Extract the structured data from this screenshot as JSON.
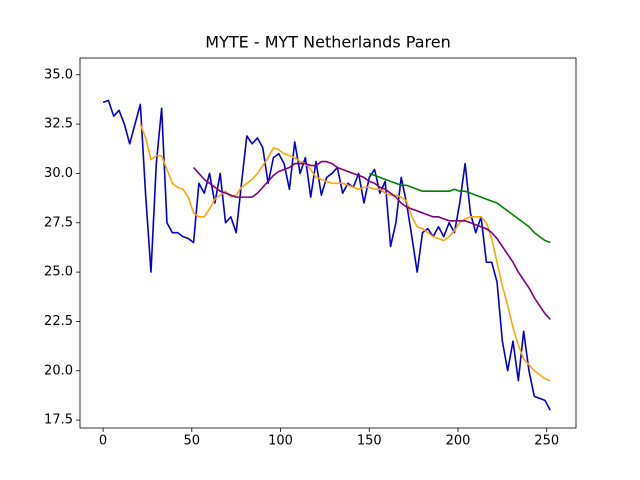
{
  "chart_data": {
    "type": "line",
    "title": "MYTE - MYT Netherlands Paren",
    "x": [
      0,
      3,
      6,
      9,
      12,
      15,
      18,
      21,
      24,
      27,
      30,
      33,
      36,
      39,
      42,
      45,
      48,
      51,
      54,
      57,
      60,
      63,
      66,
      69,
      72,
      75,
      78,
      81,
      84,
      87,
      90,
      93,
      96,
      99,
      102,
      105,
      108,
      111,
      114,
      117,
      120,
      123,
      126,
      129,
      132,
      135,
      138,
      141,
      144,
      147,
      150,
      153,
      156,
      159,
      162,
      165,
      168,
      171,
      174,
      177,
      180,
      183,
      186,
      189,
      192,
      195,
      198,
      201,
      204,
      207,
      210,
      213,
      216,
      219,
      222,
      225,
      228,
      231,
      234,
      237,
      240,
      243,
      246,
      249,
      252
    ],
    "series": [
      {
        "color": "#0000cc",
        "values": [
          33.6,
          33.7,
          32.9,
          33.2,
          32.5,
          31.5,
          32.5,
          33.5,
          28.9,
          25.0,
          30.5,
          33.3,
          27.5,
          27.0,
          27.0,
          26.8,
          26.7,
          26.5,
          29.5,
          29.0,
          30.0,
          28.5,
          30.0,
          27.5,
          27.8,
          27.0,
          29.5,
          31.9,
          31.5,
          31.8,
          31.3,
          29.5,
          30.8,
          31.0,
          30.5,
          29.2,
          31.6,
          30.0,
          30.8,
          28.8,
          30.6,
          28.9,
          29.8,
          30.0,
          30.3,
          29.0,
          29.5,
          29.3,
          30.0,
          28.5,
          29.8,
          30.2,
          29.0,
          29.6,
          26.3,
          27.5,
          29.8,
          28.5,
          26.8,
          25.0,
          27.0,
          27.2,
          26.8,
          27.3,
          26.8,
          27.5,
          27.0,
          28.5,
          30.5,
          28.0,
          27.0,
          27.8,
          25.5,
          25.5,
          24.5,
          21.5,
          20.0,
          21.5,
          19.5,
          22.0,
          20.0,
          18.7,
          18.6,
          18.5,
          18.0
        ]
      },
      {
        "color": "#ffa500",
        "values": [
          null,
          null,
          null,
          null,
          null,
          null,
          null,
          32.5,
          31.8,
          30.7,
          30.9,
          30.9,
          30.2,
          29.5,
          29.3,
          29.2,
          28.8,
          28.0,
          27.8,
          27.8,
          28.2,
          28.7,
          28.9,
          29.1,
          28.8,
          28.9,
          29.3,
          29.5,
          29.7,
          30.0,
          30.4,
          30.8,
          31.3,
          31.2,
          31.0,
          30.9,
          30.8,
          30.6,
          30.5,
          30.2,
          29.8,
          29.7,
          29.6,
          29.5,
          29.5,
          29.5,
          29.4,
          29.3,
          29.2,
          29.3,
          29.3,
          29.2,
          29.2,
          29.0,
          28.9,
          28.9,
          28.8,
          28.6,
          27.8,
          27.3,
          27.2,
          27.0,
          26.8,
          26.7,
          26.6,
          26.8,
          27.1,
          27.5,
          27.7,
          27.8,
          27.8,
          27.8,
          27.5,
          26.7,
          25.5,
          24.3,
          23.3,
          22.2,
          21.3,
          20.6,
          20.3,
          20.0,
          19.8,
          19.6,
          19.5
        ]
      },
      {
        "color": "#800080",
        "values": [
          null,
          null,
          null,
          null,
          null,
          null,
          null,
          null,
          null,
          null,
          null,
          null,
          null,
          null,
          null,
          null,
          null,
          30.3,
          30.0,
          29.7,
          29.5,
          29.3,
          29.1,
          29.0,
          28.9,
          28.8,
          28.8,
          28.8,
          28.8,
          29.0,
          29.3,
          29.6,
          29.9,
          30.1,
          30.2,
          30.3,
          30.5,
          30.5,
          30.5,
          30.4,
          30.4,
          30.6,
          30.6,
          30.5,
          30.3,
          30.2,
          30.1,
          30.0,
          29.9,
          29.8,
          29.6,
          29.5,
          29.3,
          29.2,
          29.0,
          28.8,
          28.5,
          28.3,
          28.2,
          28.1,
          28.0,
          27.9,
          27.8,
          27.8,
          27.7,
          27.6,
          27.6,
          27.6,
          27.6,
          27.5,
          27.4,
          27.3,
          27.2,
          27.0,
          26.7,
          26.3,
          25.9,
          25.5,
          25.0,
          24.6,
          24.2,
          23.7,
          23.3,
          22.9,
          22.6
        ]
      },
      {
        "color": "#008000",
        "values": [
          null,
          null,
          null,
          null,
          null,
          null,
          null,
          null,
          null,
          null,
          null,
          null,
          null,
          null,
          null,
          null,
          null,
          null,
          null,
          null,
          null,
          null,
          null,
          null,
          null,
          null,
          null,
          null,
          null,
          null,
          null,
          null,
          null,
          null,
          null,
          null,
          null,
          null,
          null,
          null,
          null,
          null,
          null,
          null,
          null,
          null,
          null,
          null,
          null,
          null,
          30.0,
          29.9,
          29.8,
          29.7,
          29.6,
          29.5,
          29.4,
          29.4,
          29.3,
          29.2,
          29.1,
          29.1,
          29.1,
          29.1,
          29.1,
          29.1,
          29.2,
          29.1,
          29.1,
          29.0,
          28.9,
          28.8,
          28.7,
          28.6,
          28.5,
          28.3,
          28.1,
          27.9,
          27.7,
          27.5,
          27.3,
          27.0,
          26.8,
          26.6,
          26.5
        ]
      }
    ],
    "xlim": [
      -13,
      266.5
    ],
    "ylim": [
      17.1,
      35.85
    ],
    "xticks": [
      0,
      50,
      100,
      150,
      200,
      250
    ],
    "yticks": [
      17.5,
      {
        "value": 20,
        "label": "20.0"
      },
      22.5,
      {
        "value": 25,
        "label": "25.0"
      },
      27.5,
      {
        "value": 30,
        "label": "30.0"
      },
      32.5,
      {
        "value": 35,
        "label": "35.0"
      }
    ]
  }
}
